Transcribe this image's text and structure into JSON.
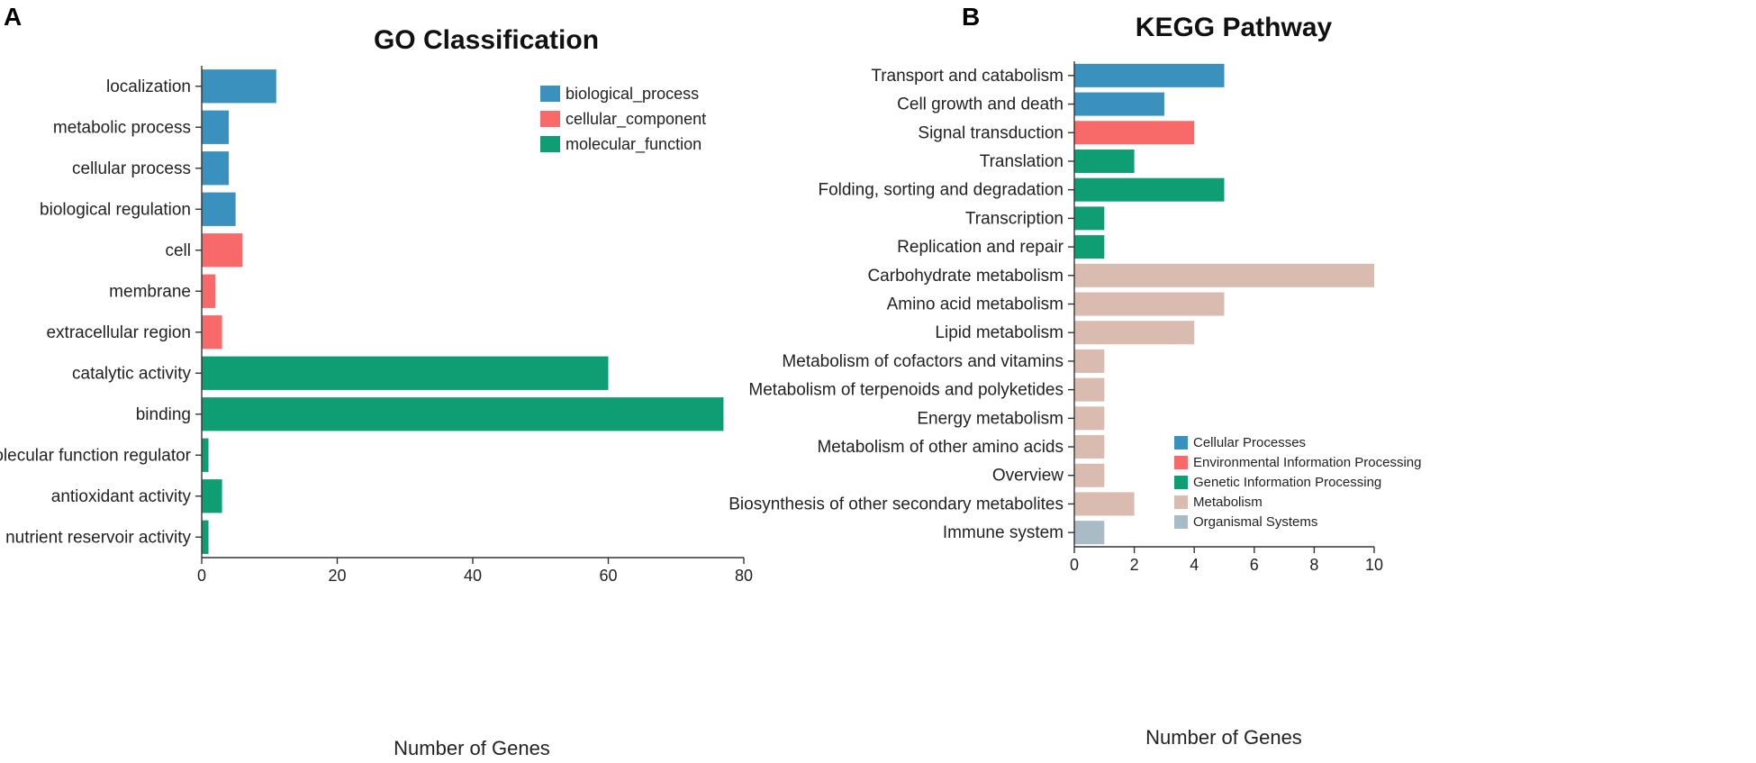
{
  "chart_data": [
    {
      "panel": "A",
      "type": "bar",
      "orientation": "horizontal",
      "title": "GO Classification",
      "xlabel": "Number of Genes",
      "ylabel": "",
      "xlim": [
        0,
        80
      ],
      "xticks": [
        "0",
        "20",
        "40",
        "60",
        "80"
      ],
      "legend_position": "top-right",
      "legend": [
        {
          "name": "biological_process",
          "color": "#3a91bd"
        },
        {
          "name": "cellular_component",
          "color": "#f86a6a"
        },
        {
          "name": "molecular_function",
          "color": "#0f9e74"
        }
      ],
      "categories": [
        {
          "label": "localization",
          "value": 11,
          "group": 0
        },
        {
          "label": "metabolic process",
          "value": 4,
          "group": 0
        },
        {
          "label": "cellular process",
          "value": 4,
          "group": 0
        },
        {
          "label": "biological regulation",
          "value": 5,
          "group": 0
        },
        {
          "label": "cell",
          "value": 6,
          "group": 1
        },
        {
          "label": "membrane",
          "value": 2,
          "group": 1
        },
        {
          "label": "extracellular region",
          "value": 3,
          "group": 1
        },
        {
          "label": "catalytic activity",
          "value": 60,
          "group": 2
        },
        {
          "label": "binding",
          "value": 77,
          "group": 2
        },
        {
          "label": "molecular function regulator",
          "value": 1,
          "group": 2
        },
        {
          "label": "antioxidant activity",
          "value": 3,
          "group": 2
        },
        {
          "label": "nutrient reservoir activity",
          "value": 1,
          "group": 2
        }
      ]
    },
    {
      "panel": "B",
      "type": "bar",
      "orientation": "horizontal",
      "title": "KEGG Pathway",
      "xlabel": "Number of Genes",
      "ylabel": "",
      "xlim": [
        0,
        10
      ],
      "xticks": [
        "0",
        "2",
        "4",
        "6",
        "8",
        "10"
      ],
      "legend_position": "bottom-right",
      "legend": [
        {
          "name": "Cellular Processes",
          "color": "#3a91bd"
        },
        {
          "name": "Environmental Information Processing",
          "color": "#f86a6a"
        },
        {
          "name": "Genetic Information Processing",
          "color": "#0f9e74"
        },
        {
          "name": "Metabolism",
          "color": "#d9bbb0"
        },
        {
          "name": "Organismal Systems",
          "color": "#a9bcc6"
        }
      ],
      "categories": [
        {
          "label": "Transport and catabolism",
          "value": 5,
          "group": 0
        },
        {
          "label": "Cell growth and death",
          "value": 3,
          "group": 0
        },
        {
          "label": "Signal transduction",
          "value": 4,
          "group": 1
        },
        {
          "label": "Translation",
          "value": 2,
          "group": 2
        },
        {
          "label": "Folding, sorting and degradation",
          "value": 5,
          "group": 2
        },
        {
          "label": "Transcription",
          "value": 1,
          "group": 2
        },
        {
          "label": "Replication and repair",
          "value": 1,
          "group": 2
        },
        {
          "label": "Carbohydrate metabolism",
          "value": 10,
          "group": 3
        },
        {
          "label": "Amino acid metabolism",
          "value": 5,
          "group": 3
        },
        {
          "label": "Lipid metabolism",
          "value": 4,
          "group": 3
        },
        {
          "label": "Metabolism of cofactors and vitamins",
          "value": 1,
          "group": 3
        },
        {
          "label": "Metabolism of terpenoids and polyketides",
          "value": 1,
          "group": 3
        },
        {
          "label": "Energy metabolism",
          "value": 1,
          "group": 3
        },
        {
          "label": "Metabolism of other amino acids",
          "value": 1,
          "group": 3
        },
        {
          "label": "Overview",
          "value": 1,
          "group": 3
        },
        {
          "label": "Biosynthesis of other secondary metabolites",
          "value": 2,
          "group": 3
        },
        {
          "label": "Immune system",
          "value": 1,
          "group": 4
        }
      ]
    }
  ]
}
